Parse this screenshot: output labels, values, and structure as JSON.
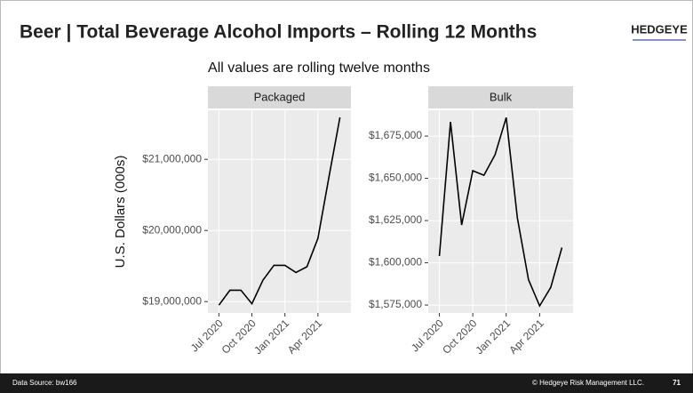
{
  "header": {
    "title": "Beer | Total Beverage Alcohol Imports – Rolling 12 Months",
    "logo": "HEDGEYE"
  },
  "subtitle": "All values are rolling twelve months",
  "footer": {
    "source": "Data Source: bw166",
    "copyright": "© Hedgeye Risk Management LLC.",
    "page": "71"
  },
  "chart_data": [
    {
      "type": "line",
      "title": "Packaged",
      "y_label": "U.S. Dollars (000s)",
      "x": [
        "2020-07",
        "2020-08",
        "2020-09",
        "2020-10",
        "2020-11",
        "2020-12",
        "2021-01",
        "2021-02",
        "2021-03",
        "2021-04",
        "2021-05",
        "2021-06"
      ],
      "values": [
        18950000,
        19160000,
        19160000,
        18970000,
        19300000,
        19510000,
        19510000,
        19410000,
        19490000,
        19890000,
        20750000,
        21590000
      ],
      "color": "#000000",
      "grid": true,
      "xlim": [
        "2020-06",
        "2021-07"
      ],
      "xticks": [
        {
          "value": "2020-07",
          "label": "Jul 2020"
        },
        {
          "value": "2020-10",
          "label": "Oct 2020"
        },
        {
          "value": "2021-01",
          "label": "Jan 2021"
        },
        {
          "value": "2021-04",
          "label": "Apr 2021"
        }
      ],
      "ylim": [
        18840000,
        21690000
      ],
      "yticks": [
        {
          "value": 19000000,
          "label": "$19,000,000"
        },
        {
          "value": 20000000,
          "label": "$20,000,000"
        },
        {
          "value": 21000000,
          "label": "$21,000,000"
        }
      ]
    },
    {
      "type": "line",
      "title": "Bulk",
      "x": [
        "2020-07",
        "2020-08",
        "2020-09",
        "2020-10",
        "2020-11",
        "2020-12",
        "2021-01",
        "2021-02",
        "2021-03",
        "2021-04",
        "2021-05",
        "2021-06"
      ],
      "values": [
        1604000,
        1683400,
        1622400,
        1654500,
        1651800,
        1664000,
        1686000,
        1626600,
        1590000,
        1574500,
        1585500,
        1609000
      ],
      "color": "#000000",
      "grid": true,
      "xlim": [
        "2020-06",
        "2021-07"
      ],
      "xticks": [
        {
          "value": "2020-07",
          "label": "Jul 2020"
        },
        {
          "value": "2020-10",
          "label": "Oct 2020"
        },
        {
          "value": "2021-01",
          "label": "Jan 2021"
        },
        {
          "value": "2021-04",
          "label": "Apr 2021"
        }
      ],
      "ylim": [
        1570300,
        1690300
      ],
      "yticks": [
        {
          "value": 1575000,
          "label": "$1,575,000"
        },
        {
          "value": 1600000,
          "label": "$1,600,000"
        },
        {
          "value": 1625000,
          "label": "$1,625,000"
        },
        {
          "value": 1650000,
          "label": "$1,650,000"
        },
        {
          "value": 1675000,
          "label": "$1,675,000"
        }
      ]
    }
  ]
}
